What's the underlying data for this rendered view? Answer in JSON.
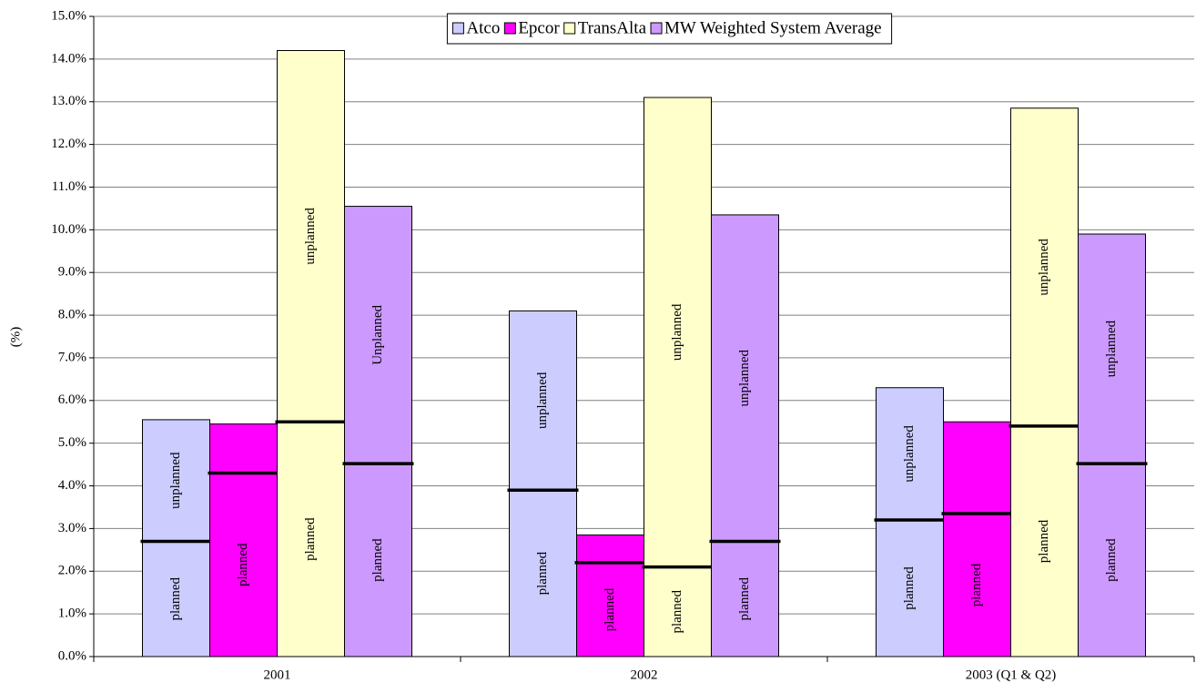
{
  "chart_data": {
    "type": "stacked_bar",
    "y_label": "(%)",
    "categories": [
      "2001",
      "2002",
      "2003 (Q1 & Q2)"
    ],
    "series": [
      {
        "name": "Atco",
        "color": "#ccccff",
        "planned": [
          2.7,
          3.9,
          3.2
        ],
        "unplanned": [
          2.85,
          4.2,
          3.1
        ],
        "planned_labels": [
          "planned",
          "planned",
          "planned"
        ],
        "unplanned_labels": [
          "unplanned",
          "unplanned",
          "unplanned"
        ]
      },
      {
        "name": "Epcor",
        "color": "#ff00ff",
        "planned": [
          4.3,
          2.2,
          3.35
        ],
        "unplanned": [
          1.15,
          0.65,
          2.15
        ],
        "planned_labels": [
          "planned",
          "planned",
          "planned"
        ],
        "unplanned_labels": [
          null,
          null,
          null
        ]
      },
      {
        "name": "TransAlta",
        "color": "#ffffcc",
        "planned": [
          5.5,
          2.1,
          5.4
        ],
        "unplanned": [
          8.7,
          11.0,
          7.45
        ],
        "planned_labels": [
          "planned",
          "planned",
          "planned"
        ],
        "unplanned_labels": [
          "unplanned",
          "unplanned",
          "unplanned"
        ]
      },
      {
        "name": "MW Weighted System Average",
        "color": "#cc99ff",
        "planned": [
          4.52,
          2.7,
          4.52
        ],
        "unplanned": [
          6.03,
          7.65,
          5.38
        ],
        "planned_labels": [
          "planned",
          "planned",
          "planned"
        ],
        "unplanned_labels": [
          "Unplanned",
          "unplanned",
          "unplanned"
        ]
      }
    ],
    "ylim": [
      0,
      15
    ],
    "yticks": [
      {
        "value": 0,
        "label": "0.0%"
      },
      {
        "value": 1,
        "label": "1.0%"
      },
      {
        "value": 2,
        "label": "2.0%"
      },
      {
        "value": 3,
        "label": "3.0%"
      },
      {
        "value": 4,
        "label": "4.0%"
      },
      {
        "value": 5,
        "label": "5.0%"
      },
      {
        "value": 6,
        "label": "6.0%"
      },
      {
        "value": 7,
        "label": "7.0%"
      },
      {
        "value": 8,
        "label": "8.0%"
      },
      {
        "value": 9,
        "label": "9.0%"
      },
      {
        "value": 10,
        "label": "10.0%"
      },
      {
        "value": 11,
        "label": "11.0%"
      },
      {
        "value": 12,
        "label": "12.0%"
      },
      {
        "value": 13,
        "label": "13.0%"
      },
      {
        "value": 14,
        "label": "14.0%"
      },
      {
        "value": 15,
        "label": "15.0%"
      }
    ],
    "grid": true,
    "legend": "top"
  }
}
